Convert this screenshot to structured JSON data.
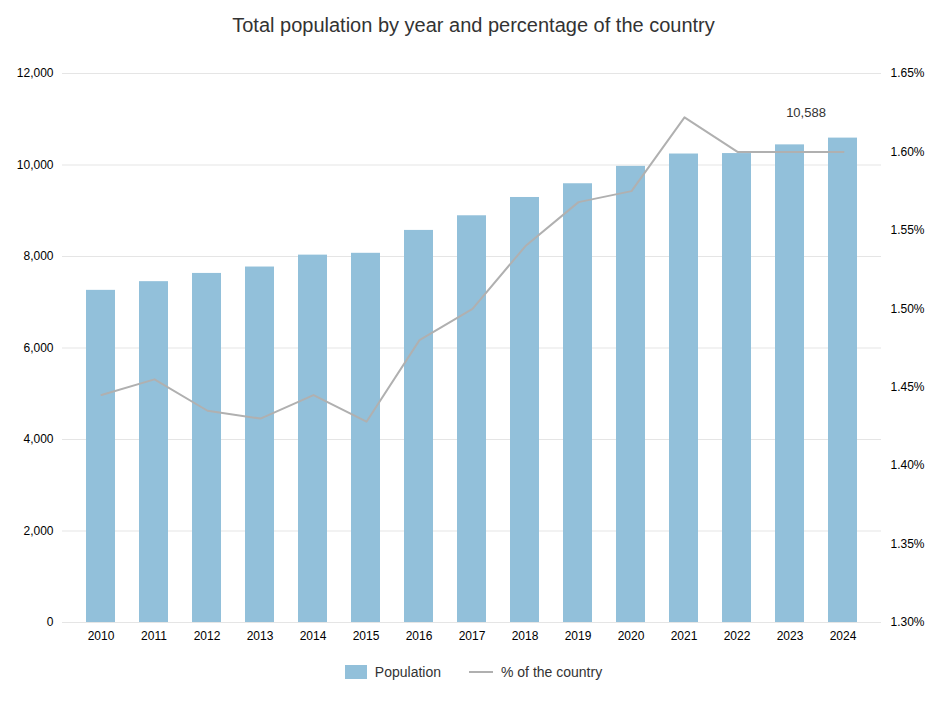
{
  "chart_data": {
    "type": "bar",
    "title": "Total population by year and percentage of the country",
    "x": [
      2010,
      2011,
      2012,
      2013,
      2014,
      2015,
      2016,
      2017,
      2018,
      2019,
      2020,
      2021,
      2022,
      2023,
      2024
    ],
    "xticks": [
      2010,
      2011,
      2012,
      2013,
      2014,
      2015,
      2016,
      2017,
      2018,
      2019,
      2020,
      2021,
      2022,
      2023,
      2024
    ],
    "series": [
      {
        "name": "Population",
        "type": "bar",
        "color": "#92C0DA",
        "values": [
          7260,
          7450,
          7630,
          7770,
          8030,
          8070,
          8570,
          8890,
          9290,
          9590,
          9970,
          10240,
          10250,
          10440,
          10588
        ]
      },
      {
        "name": "% of the country",
        "type": "line",
        "color": "#B0B0B0",
        "axis": "y2",
        "values": [
          1.445,
          1.455,
          1.435,
          1.43,
          1.445,
          1.428,
          1.48,
          1.5,
          1.54,
          1.568,
          1.575,
          1.622,
          1.6,
          1.6,
          1.6
        ]
      }
    ],
    "ylim": [
      0,
      12000
    ],
    "yticks": [
      0,
      {
        "value": 2000,
        "label": "2,000"
      },
      {
        "value": 4000,
        "label": "4,000"
      },
      {
        "value": 6000,
        "label": "6,000"
      },
      {
        "value": 8000,
        "label": "8,000"
      },
      {
        "value": 10000,
        "label": "10,000"
      },
      {
        "value": 12000,
        "label": "12,000"
      }
    ],
    "y2lim": [
      1.3,
      1.65
    ],
    "y2ticks": [
      {
        "value": 1.3,
        "label": "1.30%"
      },
      {
        "value": 1.35,
        "label": "1.35%"
      },
      {
        "value": 1.4,
        "label": "1.40%"
      },
      {
        "value": 1.45,
        "label": "1.45%"
      },
      {
        "value": 1.5,
        "label": "1.50%"
      },
      {
        "value": 1.55,
        "label": "1.55%"
      },
      {
        "value": 1.6,
        "label": "1.60%"
      },
      {
        "value": 1.65,
        "label": "1.65%"
      }
    ],
    "annotations": [
      {
        "text": "10,588",
        "x": 2024,
        "y": 10588
      }
    ],
    "grid": true,
    "legend": "bottom"
  }
}
